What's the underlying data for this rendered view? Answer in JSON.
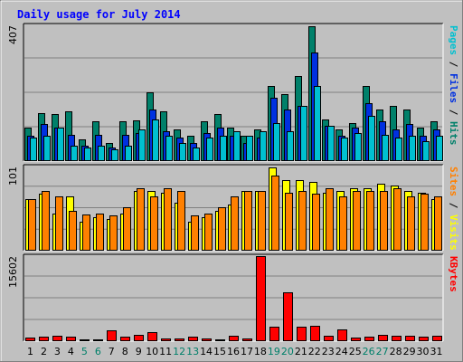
{
  "chart_data": {
    "type": "bar",
    "title": "Daily usage for July 2014",
    "categories": [
      "1",
      "2",
      "3",
      "4",
      "5",
      "6",
      "7",
      "8",
      "9",
      "10",
      "11",
      "12",
      "13",
      "14",
      "15",
      "16",
      "17",
      "18",
      "19",
      "20",
      "21",
      "22",
      "23",
      "24",
      "25",
      "26",
      "27",
      "28",
      "29",
      "30",
      "31"
    ],
    "weekend_days": [
      "5",
      "6",
      "12",
      "13",
      "19",
      "20",
      "26",
      "27"
    ],
    "panels": [
      {
        "id": "hits",
        "ymax": 407,
        "right_labels": [
          {
            "text": "Pages",
            "color": "#00c0d0"
          },
          {
            "text": " / ",
            "color": "#000000"
          },
          {
            "text": "Files",
            "color": "#0030e0"
          },
          {
            "text": " / ",
            "color": "#000000"
          },
          {
            "text": "Hits",
            "color": "#00806a"
          }
        ],
        "series": [
          {
            "name": "Hits",
            "color": "#00806a",
            "values": [
              100,
              145,
              140,
              148,
              65,
              120,
              55,
              120,
              122,
              205,
              150,
              95,
              75,
              120,
              140,
              100,
              75,
              95,
              225,
              200,
              255,
              405,
              125,
              95,
              115,
              225,
              155,
              165,
              155,
              100,
              120
            ]
          },
          {
            "name": "Files",
            "color": "#0030e0",
            "values": [
              75,
              110,
              100,
              80,
              45,
              80,
              40,
              80,
              85,
              155,
              90,
              70,
              55,
              85,
              100,
              75,
              55,
              70,
              190,
              155,
              165,
              325,
              105,
              75,
              100,
              175,
              120,
              95,
              110,
              75,
              95
            ]
          },
          {
            "name": "Pages",
            "color": "#00c0d0",
            "values": [
              70,
              75,
              100,
              45,
              40,
              45,
              35,
              45,
              95,
              125,
              75,
              55,
              40,
              70,
              75,
              90,
              75,
              90,
              115,
              90,
              165,
              225,
              105,
              70,
              85,
              135,
              80,
              70,
              75,
              60,
              75
            ]
          }
        ]
      },
      {
        "id": "visits",
        "ymax": 101,
        "right_labels": [
          {
            "text": "Sites",
            "color": "#ff8000"
          },
          {
            "text": " / ",
            "color": "#000000"
          },
          {
            "text": "Visits",
            "color": "#ffff00"
          }
        ],
        "series": [
          {
            "name": "Visits",
            "color": "#ffff00",
            "values": [
              62,
              68,
              45,
              65,
              35,
              40,
              38,
              45,
              72,
              72,
              70,
              58,
              35,
              40,
              48,
              55,
              72,
              72,
              100,
              85,
              85,
              82,
              70,
              72,
              75,
              75,
              80,
              78,
              72,
              70,
              62
            ]
          },
          {
            "name": "Sites",
            "color": "#ff8000",
            "values": [
              62,
              72,
              65,
              48,
              43,
              45,
              42,
              52,
              75,
              65,
              75,
              72,
              42,
              45,
              52,
              65,
              72,
              72,
              90,
              70,
              72,
              68,
              75,
              65,
              72,
              72,
              72,
              75,
              65,
              68,
              65
            ]
          }
        ]
      },
      {
        "id": "kbytes",
        "ymax": 15602,
        "right_labels": [
          {
            "text": "KBytes",
            "color": "#ff0000"
          }
        ],
        "series": [
          {
            "name": "KBytes",
            "color": "#ff0000",
            "values": [
              650,
              750,
              1050,
              850,
              400,
              400,
              2000,
              850,
              1200,
              1700,
              500,
              500,
              750,
              500,
              300,
              1000,
              500,
              15602,
              2700,
              9000,
              2600,
              2800,
              1000,
              2200,
              600,
              750,
              1100,
              950,
              1000,
              900,
              1000
            ]
          }
        ]
      }
    ]
  },
  "colors": {
    "background": "#c0c0c0",
    "title": "#0000ff",
    "weekday_label": "#000000",
    "weekend_label": "#00806a",
    "grid": "#808080"
  }
}
